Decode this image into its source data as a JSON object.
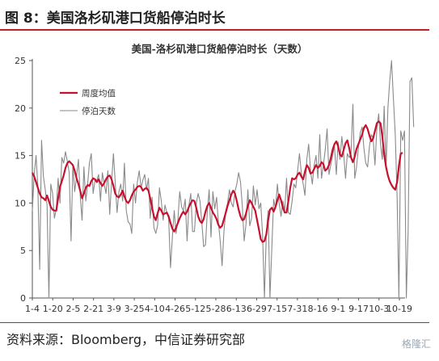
{
  "figure_title": "图 8：美国洛杉矶港口货船停泊时长",
  "source": "资料来源：Bloomberg，中信证券研究部",
  "watermark": "格隆汇",
  "colors": {
    "accent": "#c0202a",
    "weekly_avg": "#c8102e",
    "daily": "#8a8a8a"
  },
  "chart_data": {
    "type": "line",
    "title": "美国-洛杉矶港口货船停泊时长（天数）",
    "xlabel": "",
    "ylabel": "",
    "ylim": [
      0,
      25
    ],
    "yticks": [
      0,
      5,
      10,
      15,
      20,
      25
    ],
    "grid": false,
    "legend_position": "top-left",
    "x_tick_labels": [
      "1-4",
      "1-20",
      "2-5",
      "2-21",
      "3-9",
      "3-25",
      "4-10",
      "4-26",
      "5-12",
      "5-28",
      "6-13",
      "6-29",
      "7-15",
      "7-31",
      "8-16",
      "9-1",
      "9-17",
      "10-3",
      "10-19"
    ],
    "series": [
      {
        "name": "周度均值",
        "color": "#c8102e",
        "values": [
          13.2,
          12.8,
          12.2,
          11.6,
          11.0,
          10.6,
          10.5,
          10.3,
          10.8,
          10.2,
          9.6,
          9.3,
          9.2,
          9.2,
          10.5,
          11.7,
          12.3,
          12.9,
          13.7,
          14.2,
          14.4,
          14.2,
          14.0,
          13.4,
          12.6,
          12.0,
          11.3,
          10.5,
          11.0,
          11.6,
          11.9,
          11.8,
          12.3,
          12.6,
          12.5,
          12.2,
          12.5,
          12.1,
          11.8,
          12.1,
          12.5,
          12.8,
          12.9,
          12.5,
          11.8,
          11.0,
          10.7,
          10.6,
          10.9,
          11.3,
          10.7,
          10.2,
          10.0,
          10.3,
          10.8,
          11.2,
          11.4,
          11.7,
          11.8,
          11.7,
          11.3,
          11.5,
          11.6,
          11.3,
          10.5,
          9.5,
          8.6,
          8.2,
          8.9,
          9.5,
          9.2,
          8.8,
          8.9,
          9.0,
          8.6,
          7.9,
          7.3,
          7.0,
          7.4,
          7.9,
          8.4,
          8.8,
          9.1,
          8.8,
          9.1,
          9.6,
          10.0,
          10.3,
          10.2,
          9.5,
          8.6,
          8.1,
          7.9,
          8.3,
          9.1,
          9.7,
          10.0,
          9.5,
          9.0,
          8.7,
          8.3,
          7.7,
          7.4,
          7.6,
          8.3,
          9.0,
          9.7,
          10.3,
          10.9,
          11.3,
          11.0,
          10.2,
          9.3,
          8.6,
          8.2,
          8.3,
          8.9,
          9.7,
          10.3,
          10.0,
          9.6,
          9.2,
          8.2,
          7.2,
          6.2,
          5.9,
          6.0,
          6.7,
          8.2,
          9.3,
          9.5,
          9.1,
          9.6,
          10.3,
          10.9,
          10.3,
          9.5,
          9.0,
          9.0,
          10.2,
          11.6,
          12.6,
          12.5,
          12.6,
          13.0,
          13.2,
          12.8,
          12.5,
          13.3,
          14.0,
          13.7,
          13.1,
          13.2,
          13.6,
          14.0,
          13.7,
          13.9,
          14.3,
          14.1,
          13.4,
          13.6,
          14.0,
          14.7,
          15.6,
          16.2,
          16.5,
          16.0,
          15.1,
          14.9,
          15.6,
          16.3,
          16.6,
          15.8,
          14.8,
          14.3,
          14.9,
          15.7,
          16.2,
          16.7,
          17.2,
          17.9,
          18.2,
          17.8,
          17.1,
          16.5,
          16.8,
          17.6,
          18.4,
          18.6,
          18.4,
          17.0,
          15.1,
          13.8,
          12.9,
          12.3,
          11.9,
          11.6,
          11.4,
          12.2,
          13.9,
          15.2,
          15.3
        ]
      },
      {
        "name": "停泊天数",
        "color": "#8a8a8a",
        "values": [
          9.2,
          13.0,
          15.0,
          11.8,
          3.0,
          16.6,
          12.8,
          11.4,
          9.8,
          0.0,
          12.0,
          11.0,
          8.4,
          9.4,
          12.6,
          10.0,
          14.8,
          14.2,
          15.4,
          14.4,
          13.2,
          6.0,
          14.0,
          11.2,
          12.8,
          14.6,
          10.8,
          8.2,
          13.8,
          10.2,
          12.0,
          14.2,
          15.2,
          11.0,
          12.4,
          12.4,
          13.0,
          10.2,
          13.2,
          12.0,
          11.0,
          13.4,
          8.8,
          12.2,
          15.2,
          12.2,
          9.0,
          11.2,
          12.0,
          10.2,
          14.2,
          9.2,
          8.0,
          7.8,
          6.8,
          12.0,
          10.0,
          12.2,
          13.4,
          11.6,
          12.4,
          13.0,
          11.4,
          12.6,
          8.4,
          10.6,
          7.4,
          6.8,
          7.6,
          11.6,
          10.2,
          8.2,
          9.8,
          9.0,
          8.4,
          3.2,
          6.4,
          9.2,
          6.8,
          8.2,
          11.2,
          9.6,
          9.2,
          10.4,
          6.0,
          9.8,
          11.0,
          7.0,
          7.0,
          10.0,
          11.0,
          10.2,
          8.0,
          5.4,
          5.6,
          9.2,
          11.4,
          6.4,
          11.2,
          9.4,
          10.6,
          8.0,
          6.0,
          3.4,
          7.0,
          9.2,
          10.0,
          11.4,
          10.0,
          9.6,
          11.2,
          12.0,
          13.2,
          12.2,
          9.6,
          6.0,
          7.8,
          11.4,
          7.6,
          8.4,
          11.8,
          9.8,
          11.4,
          9.4,
          10.0,
          6.6,
          0.0,
          6.8,
          9.2,
          0.0,
          5.2,
          10.4,
          9.4,
          12.0,
          10.0,
          8.6,
          10.2,
          9.2,
          12.6,
          9.0,
          8.8,
          10.2,
          12.0,
          11.6,
          13.4,
          15.2,
          13.2,
          12.0,
          10.8,
          14.6,
          16.2,
          13.4,
          12.0,
          14.0,
          15.0,
          12.6,
          17.2,
          12.6,
          14.0,
          15.6,
          17.8,
          13.0,
          14.0,
          15.0,
          16.0,
          13.0,
          16.4,
          14.6,
          17.0,
          15.2,
          12.6,
          15.2,
          14.8,
          15.2,
          20.4,
          12.6,
          13.8,
          15.8,
          17.4,
          18.0,
          15.8,
          14.2,
          13.8,
          16.0,
          17.2,
          16.8,
          14.0,
          17.8,
          19.4,
          16.2,
          14.6,
          20.2,
          13.6,
          20.0,
          22.8,
          25.0,
          21.0,
          17.2,
          10.6,
          0.0,
          17.6,
          16.6,
          17.6,
          0.0,
          7.0,
          22.8,
          23.2,
          18.0
        ]
      }
    ]
  }
}
